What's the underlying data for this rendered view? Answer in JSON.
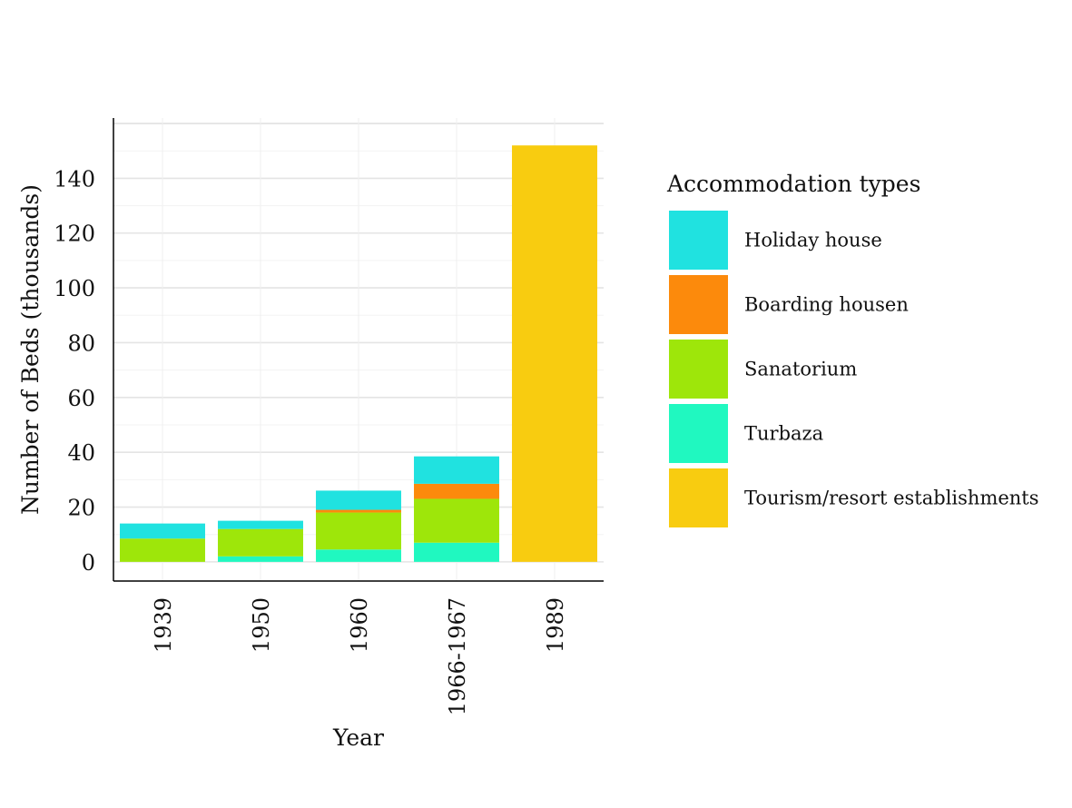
{
  "chart_data": {
    "type": "bar",
    "stacked": true,
    "title": "",
    "xlabel": "Year",
    "ylabel": "Number of Beds (thousands)",
    "categories": [
      "1939",
      "1950",
      "1960",
      "1966-1967",
      "1989"
    ],
    "ylim": [
      -7,
      162
    ],
    "yticks": [
      0,
      20,
      40,
      60,
      80,
      100,
      120,
      140
    ],
    "grid": true,
    "legend": {
      "title": "Accommodation types",
      "position": "right"
    },
    "series": [
      {
        "name": "Turbaza",
        "color": "#20F8C0",
        "values": [
          0,
          2,
          4.5,
          7,
          0
        ]
      },
      {
        "name": "Sanatorium",
        "color": "#9EE60A",
        "values": [
          8.5,
          10,
          13.5,
          16,
          0
        ]
      },
      {
        "name": "Boarding housen",
        "color": "#FC8A0C",
        "values": [
          0,
          0,
          1,
          5.5,
          0
        ]
      },
      {
        "name": "Holiday house",
        "color": "#20E2E0",
        "values": [
          5.5,
          3,
          7,
          10,
          0
        ]
      },
      {
        "name": "Tourism/resort establishments",
        "color": "#F8CC10",
        "values": [
          0,
          0,
          0,
          0,
          152
        ]
      }
    ],
    "legend_order": [
      "Holiday house",
      "Boarding housen",
      "Sanatorium",
      "Turbaza",
      "Tourism/resort establishments"
    ]
  }
}
